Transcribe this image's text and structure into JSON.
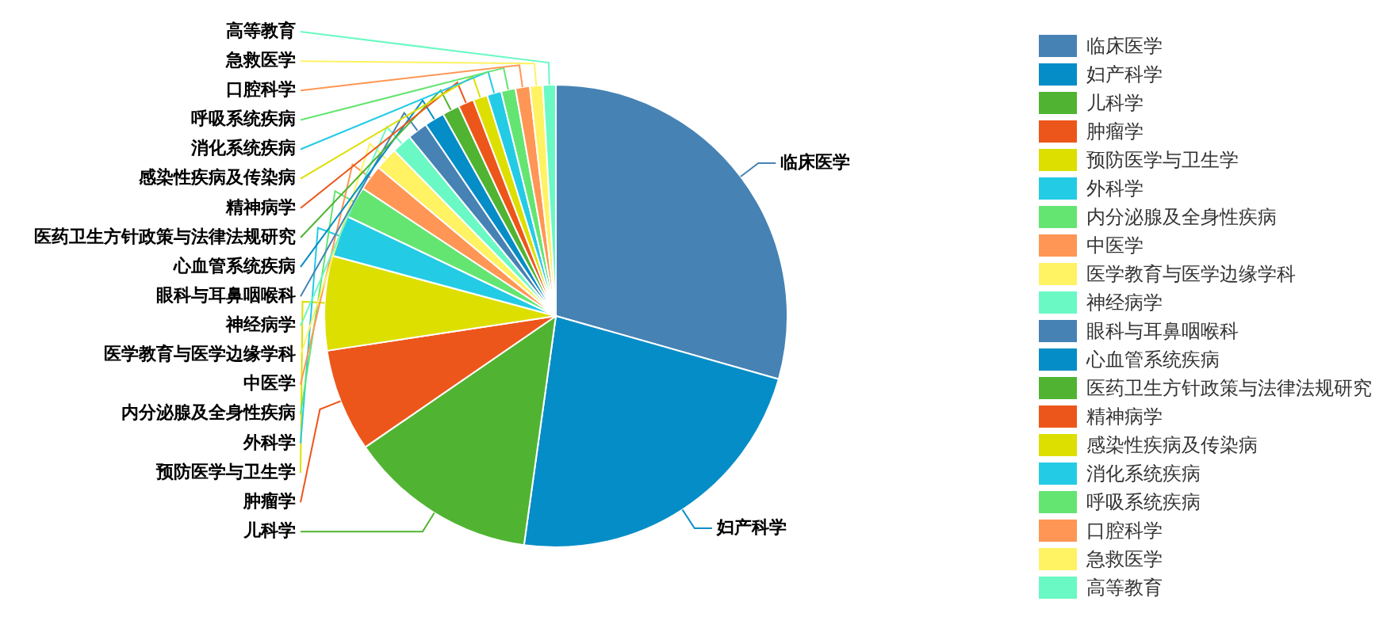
{
  "chart_data": {
    "type": "pie",
    "legend": "right",
    "categories": [
      "临床医学",
      "妇产科学",
      "儿科学",
      "肿瘤学",
      "预防医学与卫生学",
      "外科学",
      "内分泌腺及全身性疾病",
      "中医学",
      "医学教育与医学边缘学科",
      "神经病学",
      "眼科与耳鼻咽喉科",
      "心血管系统疾病",
      "医药卫生方针政策与法律法规研究",
      "精神病学",
      "感染性疾病及传染病",
      "消化系统疾病",
      "呼吸系统疾病",
      "口腔科学",
      "急救医学",
      "高等教育"
    ],
    "values": [
      29.4,
      22.8,
      13.2,
      7.2,
      6.6,
      2.9,
      2.2,
      1.8,
      1.6,
      1.4,
      1.4,
      1.4,
      1.2,
      1.1,
      1.0,
      1.0,
      1.0,
      1.0,
      0.9,
      0.9
    ],
    "colors": [
      "#4682b4",
      "#058dc7",
      "#50b432",
      "#ed561b",
      "#dddf00",
      "#24cbe5",
      "#64e572",
      "#ff9655",
      "#fff263",
      "#6af9c4",
      "#4682b4",
      "#058dc7",
      "#50b432",
      "#ed561b",
      "#dddf00",
      "#24cbe5",
      "#64e572",
      "#ff9655",
      "#fff263",
      "#6af9c4"
    ]
  }
}
